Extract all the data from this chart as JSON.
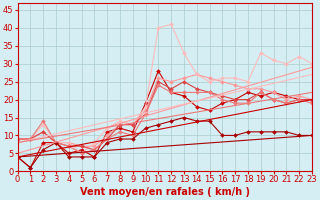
{
  "background_color": "#d4eef4",
  "grid_color": "#aacccc",
  "xlabel": "Vent moyen/en rafales ( km/h )",
  "xlabel_color": "#cc0000",
  "xlabel_fontsize": 7,
  "tick_color": "#cc0000",
  "tick_fontsize": 6,
  "ylim": [
    0,
    47
  ],
  "xlim": [
    0,
    23
  ],
  "yticks": [
    0,
    5,
    10,
    15,
    20,
    25,
    30,
    35,
    40,
    45
  ],
  "xticks": [
    0,
    1,
    2,
    3,
    4,
    5,
    6,
    7,
    8,
    9,
    10,
    11,
    12,
    13,
    14,
    15,
    16,
    17,
    18,
    19,
    20,
    21,
    22,
    23
  ],
  "series": [
    {
      "x": [
        0,
        1,
        2,
        3,
        4,
        5,
        6,
        7,
        8,
        9,
        10,
        11,
        12,
        13,
        14,
        15,
        16,
        17,
        18,
        19,
        20,
        21,
        22,
        23
      ],
      "y": [
        4,
        1,
        8,
        8,
        5,
        6,
        4,
        11,
        12,
        11,
        19,
        28,
        22,
        21,
        18,
        17,
        19,
        20,
        22,
        21,
        22,
        21,
        20,
        20
      ],
      "color": "#cc0000",
      "lw": 0.8,
      "marker": "D",
      "ms": 2
    },
    {
      "x": [
        0,
        1,
        2,
        3,
        4,
        5,
        6,
        7,
        8,
        9,
        10,
        11,
        12,
        13,
        14,
        15,
        16,
        17,
        18,
        19,
        20,
        21,
        22,
        23
      ],
      "y": [
        9,
        9,
        11,
        8,
        8,
        7,
        7,
        10,
        13,
        13,
        17,
        26,
        25,
        26,
        27,
        26,
        25,
        24,
        23,
        23,
        22,
        20,
        21,
        20
      ],
      "color": "#ff9999",
      "lw": 0.8,
      "marker": "D",
      "ms": 2
    },
    {
      "x": [
        0,
        1,
        2,
        3,
        4,
        5,
        6,
        7,
        8,
        9,
        10,
        11,
        12,
        13,
        14,
        15,
        16,
        17,
        18,
        19,
        20,
        21,
        22,
        23
      ],
      "y": [
        9,
        9,
        13,
        8,
        8,
        5,
        8,
        12,
        14,
        13,
        18,
        40,
        41,
        33,
        27,
        25,
        26,
        26,
        25,
        33,
        31,
        30,
        32,
        30
      ],
      "color": "#ffbbbb",
      "lw": 0.8,
      "marker": "D",
      "ms": 2
    },
    {
      "x": [
        0,
        1,
        2,
        3,
        4,
        5,
        6,
        7,
        8,
        9,
        10,
        11,
        12,
        13,
        14,
        15,
        16,
        17,
        18,
        19,
        20,
        21,
        22,
        23
      ],
      "y": [
        9,
        9,
        11,
        8,
        7,
        7,
        6,
        9,
        13,
        13,
        16,
        25,
        23,
        25,
        23,
        22,
        21,
        20,
        20,
        22,
        20,
        19,
        20,
        20
      ],
      "color": "#dd4444",
      "lw": 0.8,
      "marker": "D",
      "ms": 2
    },
    {
      "x": [
        0,
        1,
        2,
        3,
        4,
        5,
        6,
        7,
        8,
        9,
        10,
        11,
        12,
        13,
        14,
        15,
        16,
        17,
        18,
        19,
        20,
        21,
        22,
        23
      ],
      "y": [
        9,
        9,
        14,
        8,
        7,
        5,
        6,
        9,
        11,
        10,
        16,
        24,
        22,
        22,
        22,
        22,
        20,
        19,
        19,
        22,
        20,
        19,
        20,
        19
      ],
      "color": "#ee7777",
      "lw": 0.8,
      "marker": "D",
      "ms": 2
    },
    {
      "x": [
        0,
        1,
        2,
        3,
        4,
        5,
        6,
        7,
        8,
        9,
        10,
        11,
        12,
        13,
        14,
        15,
        16,
        17,
        18,
        19,
        20,
        21,
        22,
        23
      ],
      "y": [
        4,
        1,
        6,
        8,
        4,
        4,
        4,
        8,
        9,
        9,
        12,
        13,
        14,
        15,
        14,
        14,
        10,
        10,
        11,
        11,
        11,
        11,
        10,
        10
      ],
      "color": "#aa0000",
      "lw": 0.8,
      "marker": "D",
      "ms": 2
    },
    {
      "x": [
        0,
        23
      ],
      "y": [
        5,
        29
      ],
      "color": "#ff9999",
      "lw": 0.8,
      "marker": null,
      "ms": 0
    },
    {
      "x": [
        0,
        23
      ],
      "y": [
        8,
        27
      ],
      "color": "#ffbbbb",
      "lw": 0.8,
      "marker": null,
      "ms": 0
    },
    {
      "x": [
        0,
        23
      ],
      "y": [
        8,
        22
      ],
      "color": "#ee7777",
      "lw": 0.8,
      "marker": null,
      "ms": 0
    },
    {
      "x": [
        0,
        23
      ],
      "y": [
        4,
        20
      ],
      "color": "#cc0000",
      "lw": 0.8,
      "marker": null,
      "ms": 0
    },
    {
      "x": [
        0,
        23
      ],
      "y": [
        4,
        10
      ],
      "color": "#aa0000",
      "lw": 0.8,
      "marker": null,
      "ms": 0
    }
  ]
}
